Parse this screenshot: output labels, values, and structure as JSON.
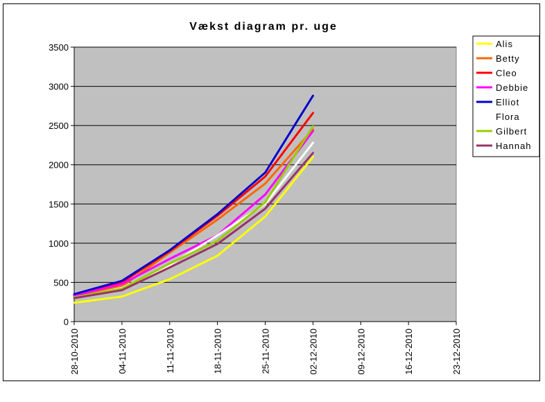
{
  "chart_data": {
    "type": "line",
    "title": "Vækst diagram pr. uge",
    "xlabel": "",
    "ylabel": "",
    "ylim": [
      0,
      3500
    ],
    "y_ticks": [
      0,
      500,
      1000,
      1500,
      2000,
      2500,
      3000,
      3500
    ],
    "x_categories": [
      "28-10-2010",
      "04-11-2010",
      "11-11-2010",
      "18-11-2010",
      "25-11-2010",
      "02-12-2010",
      "09-12-2010",
      "16-12-2010",
      "23-12-2010"
    ],
    "grid": "horizontal",
    "plot_background": "#c0c0c0",
    "legend_position": "right",
    "series": [
      {
        "name": "Alis",
        "color": "#ffff00",
        "values": [
          240,
          320,
          540,
          840,
          1340,
          2100
        ]
      },
      {
        "name": "Betty",
        "color": "#ff6600",
        "values": [
          330,
          450,
          880,
          1300,
          1760,
          2450
        ]
      },
      {
        "name": "Cleo",
        "color": "#ff0000",
        "values": [
          345,
          500,
          900,
          1350,
          1850,
          2660
        ]
      },
      {
        "name": "Debbie",
        "color": "#ff00ff",
        "values": [
          330,
          480,
          800,
          1100,
          1620,
          2430
        ]
      },
      {
        "name": "Elliot",
        "color": "#0000cc",
        "values": [
          350,
          520,
          910,
          1370,
          1900,
          2880
        ]
      },
      {
        "name": "Flora",
        "color": "#ffffff",
        "values": [
          300,
          430,
          720,
          1100,
          1500,
          2280
        ]
      },
      {
        "name": "Gilbert",
        "color": "#99cc00",
        "values": [
          310,
          420,
          740,
          1030,
          1520,
          2490
        ]
      },
      {
        "name": "Hannah",
        "color": "#993366",
        "values": [
          300,
          400,
          690,
          990,
          1440,
          2150
        ]
      }
    ]
  }
}
